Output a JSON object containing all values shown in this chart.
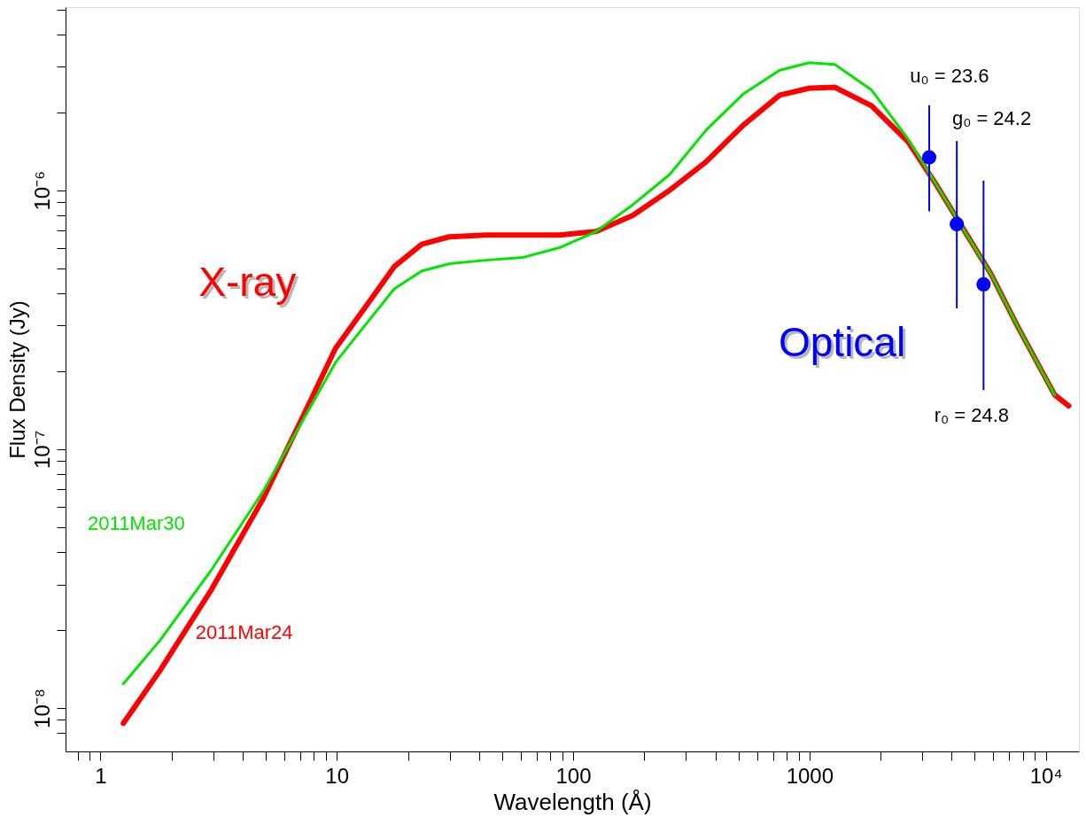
{
  "chart_data": {
    "type": "line",
    "xlabel": "Wavelength (Å)",
    "ylabel": "Flux Density (Jy)",
    "log": "xy",
    "grid": false,
    "marker": "none",
    "line_style": "solid",
    "xlim": [
      0.712,
      13800
    ],
    "ylim": [
      6.8e-09,
      5.1e-06
    ],
    "xticks": [
      {
        "value": 0.8,
        "label": null
      },
      {
        "value": 0.9,
        "label": null
      },
      1,
      {
        "value": 2,
        "label": null
      },
      {
        "value": 3,
        "label": null
      },
      {
        "value": 4,
        "label": null
      },
      {
        "value": 5,
        "label": null
      },
      {
        "value": 6,
        "label": null
      },
      {
        "value": 7,
        "label": null
      },
      {
        "value": 8,
        "label": null
      },
      {
        "value": 9,
        "label": null
      },
      10,
      {
        "value": 20,
        "label": null
      },
      {
        "value": 30,
        "label": null
      },
      {
        "value": 40,
        "label": null
      },
      {
        "value": 50,
        "label": null
      },
      {
        "value": 60,
        "label": null
      },
      {
        "value": 70,
        "label": null
      },
      {
        "value": 80,
        "label": null
      },
      {
        "value": 90,
        "label": null
      },
      100,
      {
        "value": 200,
        "label": null
      },
      {
        "value": 300,
        "label": null
      },
      {
        "value": 400,
        "label": null
      },
      {
        "value": 500,
        "label": null
      },
      {
        "value": 600,
        "label": null
      },
      {
        "value": 700,
        "label": null
      },
      {
        "value": 800,
        "label": null
      },
      {
        "value": 900,
        "label": null
      },
      1000,
      {
        "value": 2000,
        "label": null
      },
      {
        "value": 3000,
        "label": null
      },
      {
        "value": 4000,
        "label": null
      },
      {
        "value": 5000,
        "label": null
      },
      {
        "value": 6000,
        "label": null
      },
      {
        "value": 7000,
        "label": null
      },
      {
        "value": 8000,
        "label": null
      },
      {
        "value": 9000,
        "label": null
      },
      {
        "value": 10000,
        "label": "10⁴"
      }
    ],
    "yticks": [
      {
        "value": 8e-09,
        "label": null
      },
      {
        "value": 9e-09,
        "label": null
      },
      {
        "value": 1e-08,
        "label": "10⁻⁸"
      },
      {
        "value": 2e-08,
        "label": null
      },
      {
        "value": 3e-08,
        "label": null
      },
      {
        "value": 4e-08,
        "label": null
      },
      {
        "value": 5e-08,
        "label": null
      },
      {
        "value": 6e-08,
        "label": null
      },
      {
        "value": 7e-08,
        "label": null
      },
      {
        "value": 8e-08,
        "label": null
      },
      {
        "value": 9e-08,
        "label": null
      },
      {
        "value": 1e-07,
        "label": "10⁻⁷"
      },
      {
        "value": 2e-07,
        "label": null
      },
      {
        "value": 3e-07,
        "label": null
      },
      {
        "value": 4e-07,
        "label": null
      },
      {
        "value": 5e-07,
        "label": null
      },
      {
        "value": 6e-07,
        "label": null
      },
      {
        "value": 7e-07,
        "label": null
      },
      {
        "value": 8e-07,
        "label": null
      },
      {
        "value": 9e-07,
        "label": null
      },
      {
        "value": 1e-06,
        "label": "10⁻⁶"
      },
      {
        "value": 2e-06,
        "label": null
      },
      {
        "value": 3e-06,
        "label": null
      },
      {
        "value": 4e-06,
        "label": null
      },
      {
        "value": 5e-06,
        "label": null
      }
    ],
    "series": [
      {
        "name": "2011Mar30",
        "color": "#00e600",
        "x": [
          1.25,
          1.79,
          2.95,
          4.87,
          7.28,
          9.87,
          13.4,
          17.5,
          22.9,
          29.9,
          42.8,
          61.1,
          87.5,
          125,
          179,
          256,
          366,
          523,
          748,
          1000,
          1280,
          1830,
          2610,
          3420,
          4470,
          5850,
          7640,
          10900
        ],
        "values": [
          1.24e-08,
          1.83e-08,
          3.42e-08,
          6.85e-08,
          1.32e-07,
          2.16e-07,
          3.07e-07,
          4.16e-07,
          4.88e-07,
          5.2e-07,
          5.37e-07,
          5.5e-07,
          6e-07,
          6.93e-07,
          8.8e-07,
          1.15e-06,
          1.71e-06,
          2.35e-06,
          2.91e-06,
          3.11e-06,
          3.06e-06,
          2.44e-06,
          1.58e-06,
          1.06e-06,
          7.1e-07,
          4.76e-07,
          2.95e-07,
          1.62e-07
        ]
      },
      {
        "name": "2011Mar24",
        "color": "#ff0000",
        "x": [
          1.25,
          1.79,
          2.95,
          4.87,
          7.28,
          9.87,
          13.4,
          17.5,
          22.9,
          29.9,
          42.8,
          61.1,
          87.5,
          125,
          179,
          256,
          366,
          523,
          748,
          1000,
          1280,
          1830,
          2610,
          3420,
          4470,
          5850,
          7640,
          10900,
          12500
        ],
        "values": [
          8.73e-09,
          1.4e-08,
          2.87e-08,
          6.42e-08,
          1.37e-07,
          2.45e-07,
          3.6e-07,
          5.07e-07,
          6.19e-07,
          6.61e-07,
          6.71e-07,
          6.71e-07,
          6.71e-07,
          6.93e-07,
          8e-07,
          1e-06,
          1.29e-06,
          1.78e-06,
          2.33e-06,
          2.48e-06,
          2.5e-06,
          2.12e-06,
          1.54e-06,
          1.06e-06,
          7.1e-07,
          4.76e-07,
          2.95e-07,
          1.62e-07,
          1.47e-07
        ]
      },
      {
        "type": "scatter",
        "color": "#0000ff",
        "marker": "circle",
        "x": [
          3210,
          4200,
          5450
        ],
        "values": [
          1.34e-06,
          7.4e-07,
          4.33e-07
        ],
        "errors": [
          [
            8.3e-07,
            2.13e-06
          ],
          [
            3.5e-07,
            1.55e-06
          ],
          [
            1.69e-07,
            1.09e-06
          ]
        ]
      }
    ],
    "annotations": [
      "X-ray",
      "Optical",
      "u₀ = 23.6",
      "g₀ = 24.2",
      "r₀ = 24.8"
    ]
  }
}
